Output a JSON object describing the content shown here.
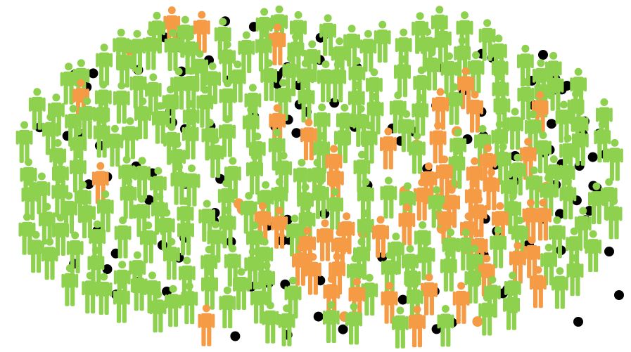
{
  "palette": {
    "background": "#ffffff",
    "green_person": "#8dd14e",
    "orange_person": "#f59b45",
    "orange_dot": "#f59b45",
    "black_dot": "#000000"
  },
  "icons": {
    "person": "person-icon",
    "dot": "dot-marker"
  },
  "legend": []
}
